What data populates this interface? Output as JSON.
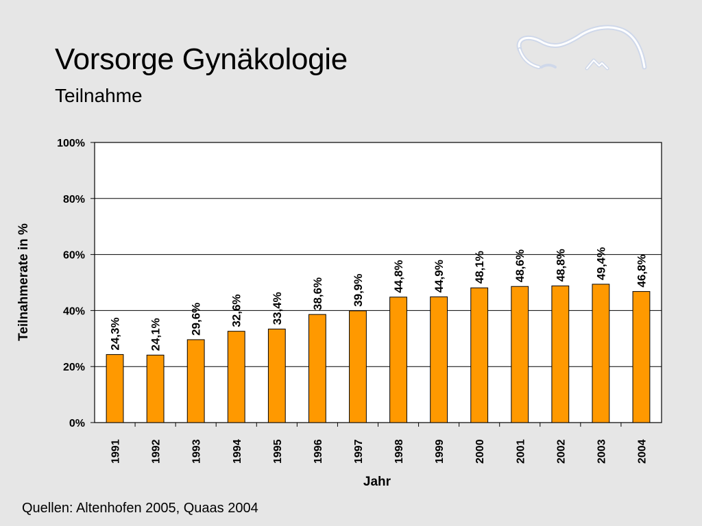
{
  "slide": {
    "title": "Vorsorge Gynäkologie",
    "subtitle": "Teilnahme",
    "source": "Quellen: Altenhofen 2005, Quaas 2004",
    "logo_icon": "wave-logo-icon"
  },
  "colors": {
    "background": "#e6e6e6",
    "bar_fill": "#ff9900",
    "bar_stroke": "#000000",
    "plot_background": "#ffffff"
  },
  "chart_data": {
    "type": "bar",
    "categories": [
      "1991",
      "1992",
      "1993",
      "1994",
      "1995",
      "1996",
      "1997",
      "1998",
      "1999",
      "2000",
      "2001",
      "2002",
      "2003",
      "2004"
    ],
    "values": [
      24.3,
      24.1,
      29.6,
      32.6,
      33.4,
      38.6,
      39.9,
      44.8,
      44.9,
      48.1,
      48.6,
      48.8,
      49.4,
      46.8
    ],
    "data_labels": [
      "24,3%",
      "24,1%",
      "29,6%",
      "32,6%",
      "33,4%",
      "38,6%",
      "39,9%",
      "44,8%",
      "44,9%",
      "48,1%",
      "48,6%",
      "48,8%",
      "49,4%",
      "46,8%"
    ],
    "yticks": [
      0,
      20,
      40,
      60,
      80,
      100
    ],
    "ytick_labels": [
      "0%",
      "20%",
      "40%",
      "60%",
      "80%",
      "100%"
    ],
    "ylim": [
      0,
      100
    ],
    "xlabel": "Jahr",
    "ylabel": "Teilnahmerate in %",
    "grid": true,
    "legend": false
  }
}
